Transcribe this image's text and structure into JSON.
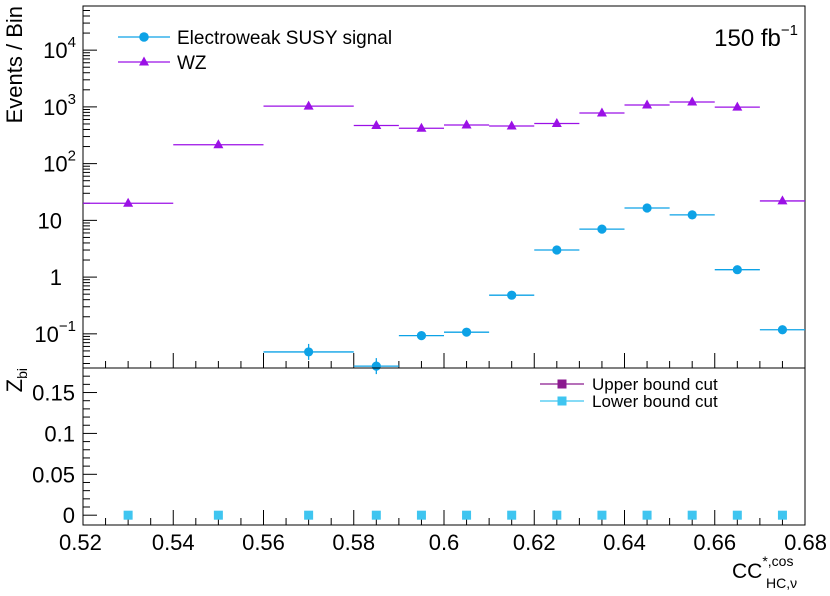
{
  "chart_data": [
    {
      "type": "scatter",
      "ylabel": "Events / Bin",
      "yscale": "log",
      "ylim": [
        0.025,
        60000
      ],
      "xlim": [
        0.52,
        0.68
      ],
      "annotation": {
        "lumi_value": "150 fb",
        "lumi_exp": "−1"
      },
      "yticks": [
        {
          "value": 10000,
          "base": "10",
          "exp": "4"
        },
        {
          "value": 1000,
          "base": "10",
          "exp": "3"
        },
        {
          "value": 100,
          "base": "10",
          "exp": "2"
        },
        {
          "value": 10,
          "base": "10",
          "exp": ""
        },
        {
          "value": 1,
          "base": "1",
          "exp": ""
        },
        {
          "value": 0.1,
          "base": "10",
          "exp": "−1"
        }
      ],
      "legend": {
        "placement": "top-left"
      },
      "series": [
        {
          "name": "Electroweak SUSY signal",
          "color": "#0da2e6",
          "marker": "circle",
          "points": [
            {
              "xlo": 0.56,
              "xhi": 0.58,
              "y": 0.048
            },
            {
              "xlo": 0.58,
              "xhi": 0.59,
              "y": 0.027
            },
            {
              "xlo": 0.59,
              "xhi": 0.6,
              "y": 0.093
            },
            {
              "xlo": 0.6,
              "xhi": 0.61,
              "y": 0.107
            },
            {
              "xlo": 0.61,
              "xhi": 0.62,
              "y": 0.48
            },
            {
              "xlo": 0.62,
              "xhi": 0.63,
              "y": 3.0
            },
            {
              "xlo": 0.63,
              "xhi": 0.64,
              "y": 7.0
            },
            {
              "xlo": 0.64,
              "xhi": 0.65,
              "y": 16.5
            },
            {
              "xlo": 0.65,
              "xhi": 0.66,
              "y": 12.5
            },
            {
              "xlo": 0.66,
              "xhi": 0.67,
              "y": 1.35
            },
            {
              "xlo": 0.67,
              "xhi": 0.68,
              "y": 0.118
            }
          ]
        },
        {
          "name": "WZ",
          "color": "#9b10e6",
          "marker": "triangle",
          "points": [
            {
              "xlo": 0.52,
              "xhi": 0.54,
              "y": 20
            },
            {
              "xlo": 0.54,
              "xhi": 0.56,
              "y": 215
            },
            {
              "xlo": 0.56,
              "xhi": 0.58,
              "y": 1030
            },
            {
              "xlo": 0.58,
              "xhi": 0.59,
              "y": 470
            },
            {
              "xlo": 0.59,
              "xhi": 0.6,
              "y": 420
            },
            {
              "xlo": 0.6,
              "xhi": 0.61,
              "y": 480
            },
            {
              "xlo": 0.61,
              "xhi": 0.62,
              "y": 460
            },
            {
              "xlo": 0.62,
              "xhi": 0.63,
              "y": 510
            },
            {
              "xlo": 0.63,
              "xhi": 0.64,
              "y": 780
            },
            {
              "xlo": 0.64,
              "xhi": 0.65,
              "y": 1080
            },
            {
              "xlo": 0.65,
              "xhi": 0.66,
              "y": 1220
            },
            {
              "xlo": 0.66,
              "xhi": 0.67,
              "y": 990
            },
            {
              "xlo": 0.67,
              "xhi": 0.68,
              "y": 22
            }
          ]
        }
      ]
    },
    {
      "type": "scatter",
      "ylabel_base": "Z",
      "ylabel_sub": "bi",
      "ylim": [
        -0.012,
        0.18
      ],
      "xlim": [
        0.52,
        0.68
      ],
      "yticks": [
        {
          "value": 0,
          "label": "0"
        },
        {
          "value": 0.05,
          "label": "0.05"
        },
        {
          "value": 0.1,
          "label": "0.1"
        },
        {
          "value": 0.15,
          "label": "0.15"
        }
      ],
      "xticks": [
        {
          "value": 0.52,
          "label": "0.52"
        },
        {
          "value": 0.54,
          "label": "0.54"
        },
        {
          "value": 0.56,
          "label": "0.56"
        },
        {
          "value": 0.58,
          "label": "0.58"
        },
        {
          "value": 0.6,
          "label": "0.6"
        },
        {
          "value": 0.62,
          "label": "0.62"
        },
        {
          "value": 0.64,
          "label": "0.64"
        },
        {
          "value": 0.66,
          "label": "0.66"
        },
        {
          "value": 0.68,
          "label": "0.68"
        }
      ],
      "xlabel": {
        "base": "CC",
        "sup": "*,cos",
        "sub": "HC,ν"
      },
      "legend": {
        "placement": "top-right"
      },
      "series": [
        {
          "name": "Upper bound cut",
          "color": "#8b1a8f",
          "marker": "square",
          "points": []
        },
        {
          "name": "Lower bound cut",
          "color": "#3fc5f0",
          "marker": "square",
          "points": [
            {
              "x": 0.53,
              "y": 0
            },
            {
              "x": 0.55,
              "y": 0
            },
            {
              "x": 0.57,
              "y": 0
            },
            {
              "x": 0.585,
              "y": 0
            },
            {
              "x": 0.595,
              "y": 0
            },
            {
              "x": 0.605,
              "y": 0
            },
            {
              "x": 0.615,
              "y": 0
            },
            {
              "x": 0.625,
              "y": 0
            },
            {
              "x": 0.635,
              "y": 0
            },
            {
              "x": 0.645,
              "y": 0
            },
            {
              "x": 0.655,
              "y": 0
            },
            {
              "x": 0.665,
              "y": 0
            },
            {
              "x": 0.675,
              "y": 0
            }
          ]
        }
      ]
    }
  ]
}
